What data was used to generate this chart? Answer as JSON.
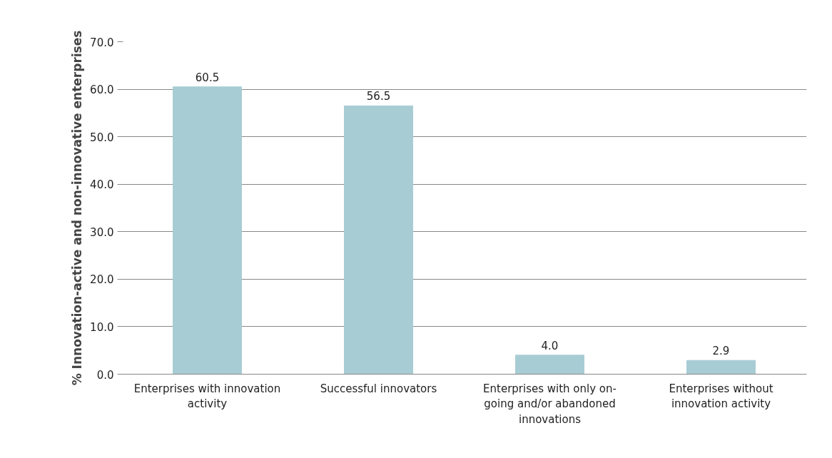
{
  "chart_data": {
    "type": "bar",
    "ylabel": "% Innovation-active and non-innovative enterprises",
    "categories": [
      "Enterprises with innovation activity",
      "Successful innovators",
      "Enterprises with only on-going and/or abandoned innovations",
      "Enterprises without innovation activity"
    ],
    "values": [
      60.5,
      56.5,
      4.0,
      2.9
    ],
    "value_labels": [
      "60.5",
      "56.5",
      "4.0",
      "2.9"
    ],
    "color": "#a8ccd4",
    "grid": "y",
    "ylim": [
      0,
      70
    ],
    "yticks": [
      {
        "value": 0,
        "label": "0.0"
      },
      {
        "value": 10,
        "label": "10.0"
      },
      {
        "value": 20,
        "label": "20.0"
      },
      {
        "value": 30,
        "label": "30.0"
      },
      {
        "value": 40,
        "label": "40.0"
      },
      {
        "value": 50,
        "label": "50.0"
      },
      {
        "value": 60,
        "label": "60.0"
      },
      {
        "value": 70,
        "label": "70.0"
      }
    ]
  }
}
